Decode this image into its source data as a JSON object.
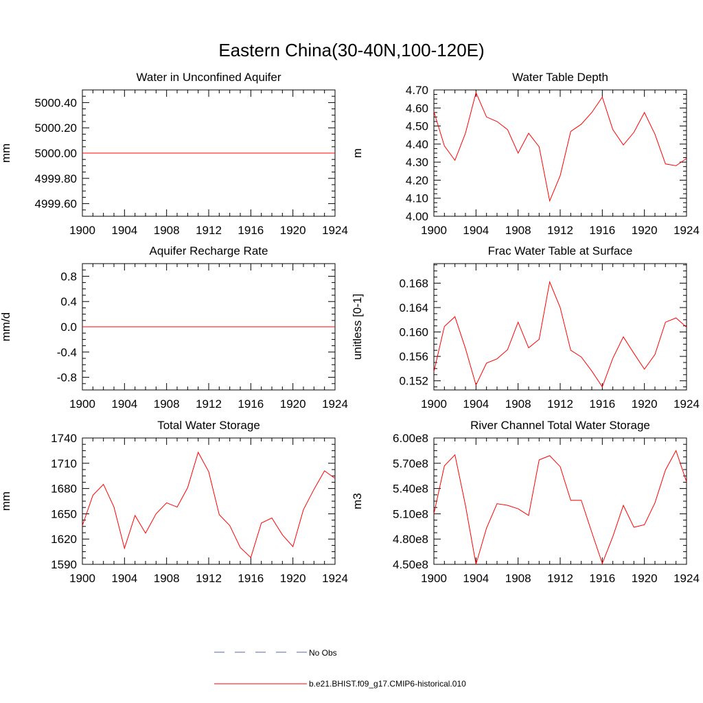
{
  "figure": {
    "title": "Eastern China(30-40N,100-120E)",
    "legend": {
      "placement": "bottom-center",
      "entries": [
        {
          "label": "No Obs",
          "color": "#5566aa",
          "style": "dashed"
        },
        {
          "label": "b.e21.BHIST.f09_g17.CMIP6-historical.010",
          "color": "#ff0000",
          "style": "solid"
        }
      ]
    }
  },
  "chart_data": [
    {
      "type": "line",
      "title": "Water in Unconfined Aquifer",
      "xlabel": "",
      "ylabel": "mm",
      "xlim": [
        1900,
        1924
      ],
      "ylim": [
        4999.5,
        5000.5
      ],
      "xticks": [
        1900,
        1904,
        1908,
        1912,
        1916,
        1920,
        1924
      ],
      "xtick_labels": [
        "1900",
        "1904",
        "1908",
        "1912",
        "1916",
        "1920",
        "1924"
      ],
      "yticks": [
        4999.6,
        4999.8,
        5000.0,
        5000.2,
        5000.4
      ],
      "ytick_labels": [
        "4999.60",
        "4999.80",
        "5000.00",
        "5000.20",
        "5000.40"
      ],
      "grid": false,
      "series": [
        {
          "color": "#ff0000",
          "x": [
            1900,
            1901,
            1902,
            1903,
            1904,
            1905,
            1906,
            1907,
            1908,
            1909,
            1910,
            1911,
            1912,
            1913,
            1914,
            1915,
            1916,
            1917,
            1918,
            1919,
            1920,
            1921,
            1922,
            1923,
            1924
          ],
          "y": [
            5000,
            5000,
            5000,
            5000,
            5000,
            5000,
            5000,
            5000,
            5000,
            5000,
            5000,
            5000,
            5000,
            5000,
            5000,
            5000,
            5000,
            5000,
            5000,
            5000,
            5000,
            5000,
            5000,
            5000,
            5000
          ]
        }
      ]
    },
    {
      "type": "line",
      "title": "Water Table Depth",
      "xlabel": "",
      "ylabel": "m",
      "xlim": [
        1900,
        1924
      ],
      "ylim": [
        4.0,
        4.7
      ],
      "xticks": [
        1900,
        1904,
        1908,
        1912,
        1916,
        1920,
        1924
      ],
      "xtick_labels": [
        "1900",
        "1904",
        "1908",
        "1912",
        "1916",
        "1920",
        "1924"
      ],
      "yticks": [
        4.0,
        4.1,
        4.2,
        4.3,
        4.4,
        4.5,
        4.6,
        4.7
      ],
      "ytick_labels": [
        "4.00",
        "4.10",
        "4.20",
        "4.30",
        "4.40",
        "4.50",
        "4.60",
        "4.70"
      ],
      "grid": false,
      "series": [
        {
          "color": "#ff0000",
          "x": [
            1900,
            1901,
            1902,
            1903,
            1904,
            1905,
            1906,
            1907,
            1908,
            1909,
            1910,
            1911,
            1912,
            1913,
            1914,
            1915,
            1916,
            1917,
            1918,
            1919,
            1920,
            1921,
            1922,
            1923,
            1924
          ],
          "y": [
            4.58,
            4.39,
            4.31,
            4.46,
            4.685,
            4.55,
            4.525,
            4.48,
            4.35,
            4.46,
            4.385,
            4.085,
            4.225,
            4.47,
            4.51,
            4.575,
            4.66,
            4.48,
            4.395,
            4.465,
            4.575,
            4.455,
            4.29,
            4.28,
            4.32
          ]
        }
      ]
    },
    {
      "type": "line",
      "title": "Aquifer Recharge Rate",
      "xlabel": "",
      "ylabel": "mm/d",
      "xlim": [
        1900,
        1924
      ],
      "ylim": [
        -1.0,
        1.0
      ],
      "xticks": [
        1900,
        1904,
        1908,
        1912,
        1916,
        1920,
        1924
      ],
      "xtick_labels": [
        "1900",
        "1904",
        "1908",
        "1912",
        "1916",
        "1920",
        "1924"
      ],
      "yticks": [
        -0.8,
        -0.4,
        0.0,
        0.4,
        0.8
      ],
      "ytick_labels": [
        "-0.8",
        "-0.4",
        "0.0",
        "0.4",
        "0.8"
      ],
      "grid": false,
      "series": [
        {
          "color": "#ff0000",
          "x": [
            1900,
            1901,
            1902,
            1903,
            1904,
            1905,
            1906,
            1907,
            1908,
            1909,
            1910,
            1911,
            1912,
            1913,
            1914,
            1915,
            1916,
            1917,
            1918,
            1919,
            1920,
            1921,
            1922,
            1923,
            1924
          ],
          "y": [
            0,
            0,
            0,
            0,
            0,
            0,
            0,
            0,
            0,
            0,
            0,
            0,
            0,
            0,
            0,
            0,
            0,
            0,
            0,
            0,
            0,
            0,
            0,
            0,
            0
          ]
        }
      ]
    },
    {
      "type": "line",
      "title": "Frac Water Table at Surface",
      "xlabel": "",
      "ylabel": "unitless [0-1]",
      "xlim": [
        1900,
        1924
      ],
      "ylim": [
        0.1505,
        0.1712
      ],
      "xticks": [
        1900,
        1904,
        1908,
        1912,
        1916,
        1920,
        1924
      ],
      "xtick_labels": [
        "1900",
        "1904",
        "1908",
        "1912",
        "1916",
        "1920",
        "1924"
      ],
      "yticks": [
        0.152,
        0.156,
        0.16,
        0.164,
        0.168
      ],
      "ytick_labels": [
        "0.152",
        "0.156",
        "0.160",
        "0.164",
        "0.168"
      ],
      "grid": false,
      "series": [
        {
          "color": "#ff0000",
          "x": [
            1900,
            1901,
            1902,
            1903,
            1904,
            1905,
            1906,
            1907,
            1908,
            1909,
            1910,
            1911,
            1912,
            1913,
            1914,
            1915,
            1916,
            1917,
            1918,
            1919,
            1920,
            1921,
            1922,
            1923,
            1924
          ],
          "y": [
            0.1535,
            0.1609,
            0.1625,
            0.1573,
            0.1513,
            0.1549,
            0.1556,
            0.1571,
            0.1616,
            0.1574,
            0.1588,
            0.1682,
            0.164,
            0.157,
            0.1559,
            0.1536,
            0.151,
            0.1557,
            0.1592,
            0.1565,
            0.1539,
            0.1563,
            0.1616,
            0.1623,
            0.1608
          ]
        }
      ]
    },
    {
      "type": "line",
      "title": "Total Water Storage",
      "xlabel": "",
      "ylabel": "mm",
      "xlim": [
        1900,
        1924
      ],
      "ylim": [
        1590,
        1740
      ],
      "xticks": [
        1900,
        1904,
        1908,
        1912,
        1916,
        1920,
        1924
      ],
      "xtick_labels": [
        "1900",
        "1904",
        "1908",
        "1912",
        "1916",
        "1920",
        "1924"
      ],
      "yticks": [
        1590,
        1620,
        1650,
        1680,
        1710,
        1740
      ],
      "ytick_labels": [
        "1590",
        "1620",
        "1650",
        "1680",
        "1710",
        "1740"
      ],
      "grid": false,
      "series": [
        {
          "color": "#ff0000",
          "x": [
            1900,
            1901,
            1902,
            1903,
            1904,
            1905,
            1906,
            1907,
            1908,
            1909,
            1910,
            1911,
            1912,
            1913,
            1914,
            1915,
            1916,
            1917,
            1918,
            1919,
            1920,
            1921,
            1922,
            1923,
            1924
          ],
          "y": [
            1636,
            1672,
            1685,
            1658,
            1609,
            1648,
            1627,
            1650,
            1663,
            1658,
            1681,
            1723,
            1700,
            1649,
            1636,
            1610,
            1598,
            1639,
            1645,
            1625,
            1611,
            1655,
            1679,
            1701,
            1692
          ]
        }
      ]
    },
    {
      "type": "line",
      "title": "River Channel Total Water Storage",
      "xlabel": "",
      "ylabel": "m3",
      "xlim": [
        1900,
        1924
      ],
      "ylim": [
        450000000,
        600000000
      ],
      "xticks": [
        1900,
        1904,
        1908,
        1912,
        1916,
        1920,
        1924
      ],
      "xtick_labels": [
        "1900",
        "1904",
        "1908",
        "1912",
        "1916",
        "1920",
        "1924"
      ],
      "yticks": [
        450000000,
        480000000,
        510000000,
        540000000,
        570000000,
        600000000
      ],
      "ytick_labels": [
        "4.50e8",
        "4.80e8",
        "5.10e8",
        "5.40e8",
        "5.70e8",
        "6.00e8"
      ],
      "grid": false,
      "series": [
        {
          "color": "#ff0000",
          "x": [
            1900,
            1901,
            1902,
            1903,
            1904,
            1905,
            1906,
            1907,
            1908,
            1909,
            1910,
            1911,
            1912,
            1913,
            1914,
            1915,
            1916,
            1917,
            1918,
            1919,
            1920,
            1921,
            1922,
            1923,
            1924
          ],
          "y": [
            510000000,
            567000000,
            580000000,
            520000000,
            450000000,
            493000000,
            522000000,
            520000000,
            516000000,
            508000000,
            574000000,
            579000000,
            566000000,
            526000000,
            526000000,
            488000000,
            451000000,
            483000000,
            520000000,
            494000000,
            497000000,
            523000000,
            562000000,
            585000000,
            548000000
          ]
        }
      ]
    }
  ]
}
